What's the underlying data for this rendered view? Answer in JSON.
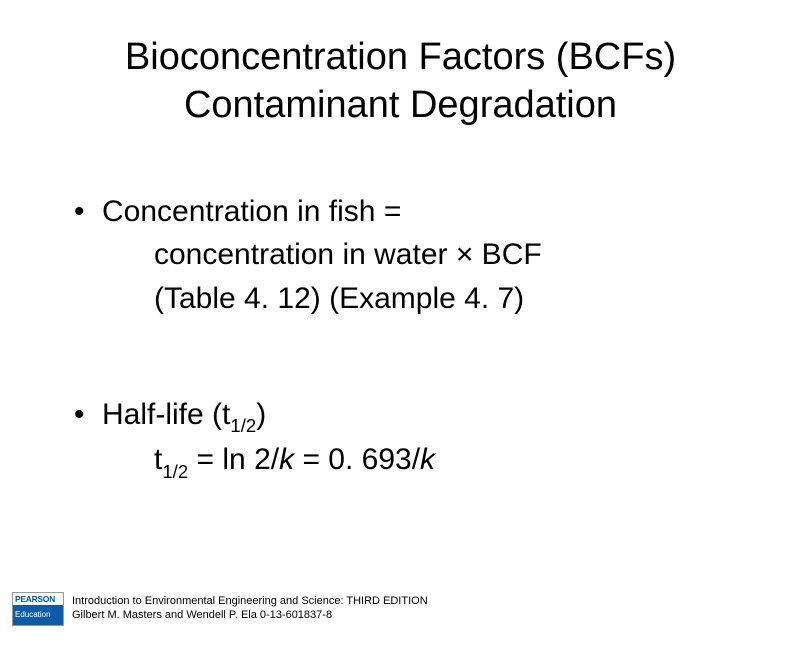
{
  "title": {
    "line1": "Bioconcentration Factors (BCFs)",
    "line2": "Contaminant Degradation"
  },
  "bullets": {
    "b1": {
      "lead": "Concentration in fish =",
      "l2": "concentration in water × BCF",
      "l3": "(Table 4. 12) (Example 4. 7)"
    },
    "b2": {
      "lead_pre": "Half-life (t",
      "lead_sub": "1/2",
      "lead_post": ")",
      "eq_pre": "t",
      "eq_sub": "1/2",
      "eq_mid": " = ln 2/",
      "eq_k1": "k",
      "eq_mid2": " = 0. 693/",
      "eq_k2": "k"
    }
  },
  "logo": {
    "top": "PEARSON",
    "bottom": "Education"
  },
  "footer": {
    "l1": "Introduction to Environmental Engineering and Science: THIRD EDITION",
    "l2": "Gilbert M. Masters and Wendell P. Ela  0-13-601837-8"
  },
  "colors": {
    "text": "#000000",
    "bg": "#ffffff",
    "logo_blue": "#0a5ca8"
  },
  "typography": {
    "title_fontsize": 38,
    "body_fontsize": 30,
    "footer_fontsize": 11
  }
}
